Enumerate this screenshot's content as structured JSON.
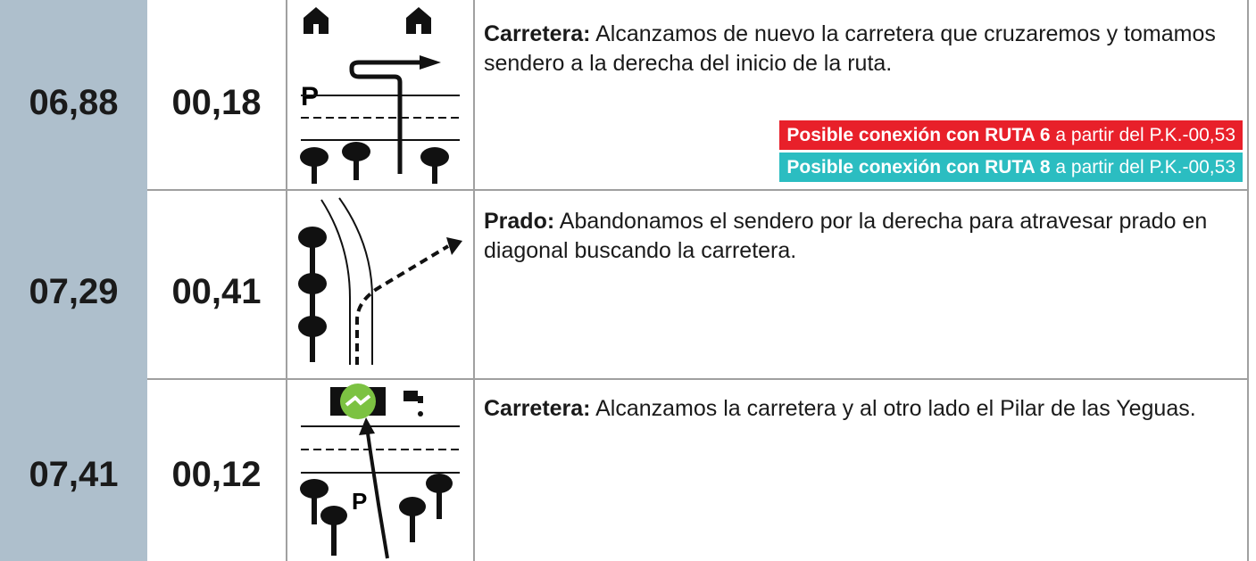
{
  "rows": [
    {
      "km": "06,88",
      "partial": "00,18",
      "title": "Carretera:",
      "text": "Alcanzamos de nuevo la carretera que cruzaremos y tomamos sendero a la derecha del inicio de la ruta.",
      "badges": [
        {
          "bold": "Posible conexión con RUTA 6",
          "rest": "a partir del P.K.-00,53"
        },
        {
          "bold": "Posible conexión con RUTA 8",
          "rest": "a partir del P.K.-00,53"
        }
      ]
    },
    {
      "km": "07,29",
      "partial": "00,41",
      "title": "Prado:",
      "text": "Abandonamos el sendero por la derecha para atravesar prado en diagonal buscando la carretera."
    },
    {
      "km": "07,41",
      "partial": "00,12",
      "title": "Carretera:",
      "text": "Alcanzamos la carretera y al otro lado el Pilar de las Yeguas."
    }
  ]
}
